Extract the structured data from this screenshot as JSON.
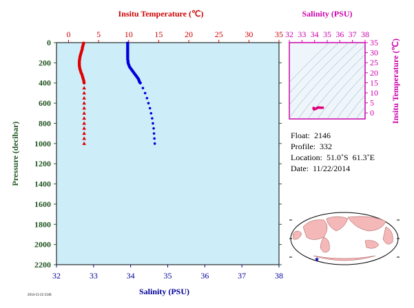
{
  "chart_data": [
    {
      "type": "scatter",
      "name_hint": "profile",
      "top_axis_label": "Insitu Temperature (℃)",
      "bottom_axis_label": "Salinity (PSU)",
      "y_axis_label": "Pressure (decibar)",
      "temperature_ticks": [
        0,
        5,
        10,
        15,
        20,
        25,
        30,
        35
      ],
      "salinity_ticks": [
        32,
        33,
        34,
        35,
        36,
        37,
        38
      ],
      "pressure_ticks": [
        0,
        200,
        400,
        600,
        800,
        1000,
        1200,
        1400,
        1600,
        1800,
        2000,
        2200
      ],
      "temperature_range": [
        -2,
        35
      ],
      "salinity_range": [
        32,
        38
      ],
      "pressure_range": [
        0,
        2200
      ],
      "y_inverted": true,
      "colors": {
        "temperature": "#e00000",
        "salinity": "#0000dd",
        "background": "#cdeef9",
        "temp_axis": "#cc0000",
        "sal_axis": "#000099",
        "pres_axis": "#225522"
      },
      "series": [
        {
          "name": "temperature",
          "pressure": [
            5,
            10,
            20,
            30,
            40,
            50,
            60,
            70,
            80,
            90,
            100,
            110,
            120,
            130,
            140,
            150,
            160,
            170,
            180,
            190,
            200,
            210,
            220,
            230,
            240,
            250,
            260,
            270,
            280,
            290,
            300,
            310,
            320,
            330,
            340,
            350,
            360,
            370,
            380,
            390,
            400,
            450,
            500,
            550,
            600,
            650,
            700,
            750,
            800,
            850,
            900,
            950,
            1000
          ],
          "values": [
            2.5,
            2.5,
            2.45,
            2.4,
            2.35,
            2.3,
            2.3,
            2.25,
            2.2,
            2.15,
            2.1,
            2.05,
            2.0,
            1.95,
            1.9,
            1.9,
            1.85,
            1.85,
            1.8,
            1.8,
            1.8,
            1.8,
            1.8,
            1.8,
            1.85,
            1.85,
            1.9,
            1.95,
            2.0,
            2.05,
            2.1,
            2.2,
            2.25,
            2.3,
            2.35,
            2.4,
            2.45,
            2.5,
            2.55,
            2.55,
            2.6,
            2.6,
            2.6,
            2.6,
            2.6,
            2.6,
            2.6,
            2.6,
            2.6,
            2.6,
            2.6,
            2.6,
            2.6
          ]
        },
        {
          "name": "salinity",
          "pressure": [
            5,
            10,
            20,
            30,
            40,
            50,
            60,
            70,
            80,
            90,
            100,
            110,
            120,
            130,
            140,
            150,
            160,
            170,
            180,
            190,
            200,
            210,
            220,
            230,
            240,
            250,
            260,
            270,
            280,
            290,
            300,
            310,
            320,
            330,
            340,
            350,
            360,
            370,
            380,
            390,
            400,
            450,
            500,
            550,
            600,
            650,
            700,
            750,
            800,
            850,
            900,
            950,
            1000
          ],
          "values": [
            33.92,
            33.92,
            33.92,
            33.92,
            33.92,
            33.92,
            33.92,
            33.92,
            33.92,
            33.92,
            33.92,
            33.92,
            33.92,
            33.92,
            33.92,
            33.92,
            33.92,
            33.92,
            33.93,
            33.93,
            33.93,
            33.94,
            33.95,
            33.96,
            33.97,
            33.99,
            34.01,
            34.03,
            34.05,
            34.07,
            34.09,
            34.11,
            34.13,
            34.15,
            34.17,
            34.19,
            34.21,
            34.22,
            34.23,
            34.24,
            34.26,
            34.33,
            34.39,
            34.44,
            34.48,
            34.52,
            34.55,
            34.58,
            34.6,
            34.62,
            34.63,
            34.64,
            34.65
          ]
        }
      ]
    },
    {
      "type": "scatter",
      "name_hint": "ts-inset",
      "top_axis_label": "Salinity (PSU)",
      "right_axis_label": "Insitu Temperature (℃)",
      "salinity_ticks": [
        32,
        33,
        34,
        35,
        36,
        37,
        38
      ],
      "temperature_ticks": [
        0,
        5,
        10,
        15,
        20,
        25,
        30,
        35
      ],
      "salinity_range": [
        32,
        38
      ],
      "temperature_range": [
        -3,
        35
      ],
      "colors": {
        "points": "#e0007a",
        "axis": "#cc00aa",
        "contours": "#8899aa"
      },
      "series": [
        {
          "name": "ts",
          "salinity": [
            33.92,
            33.93,
            33.95,
            34.0,
            34.05,
            34.1,
            34.15,
            34.2,
            34.25,
            34.3,
            34.35,
            34.4,
            34.45,
            34.5,
            34.55,
            34.6,
            34.65
          ],
          "temperature": [
            2.5,
            2.0,
            1.8,
            1.85,
            2.0,
            2.1,
            2.3,
            2.45,
            2.6,
            2.7,
            2.7,
            2.65,
            2.6,
            2.6,
            2.6,
            2.6,
            2.6
          ]
        }
      ]
    }
  ],
  "info": {
    "float": "Float:  2146",
    "profile": "Profile:  332",
    "location": "Location:  51.0˚S  61.3˚E",
    "date": "Date:  11/22/2014"
  },
  "footer_text": "2014-11-22 2146"
}
